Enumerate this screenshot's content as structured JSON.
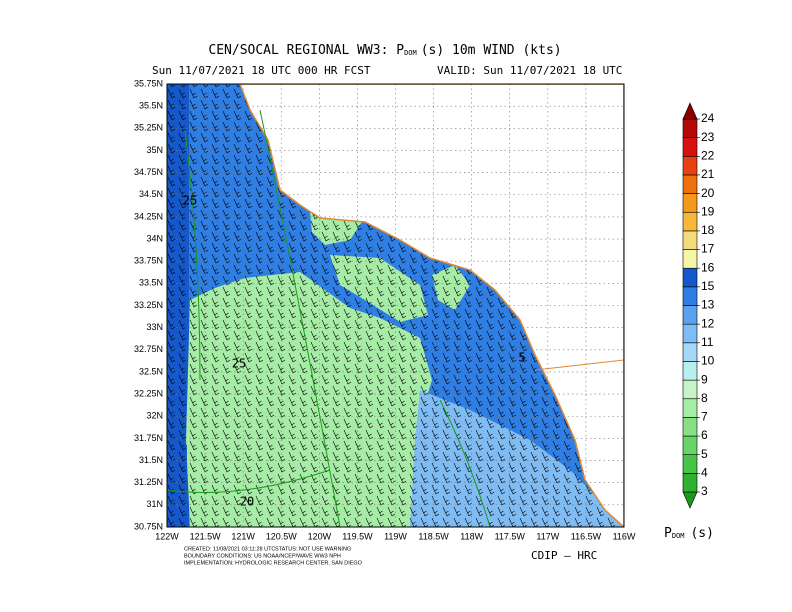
{
  "header": {
    "title_main": "CEN/SOCAL REGIONAL WW3: P",
    "title_sub": "DOM",
    "title_rest": "(s) 10m WIND (kts)",
    "run": "Sun 11/07/2021 18 UTC 000 HR FCST",
    "valid": "VALID: Sun 11/07/2021 18 UTC"
  },
  "map": {
    "xlim": [
      -122,
      -116
    ],
    "ylim": [
      30.75,
      35.75
    ],
    "xticks": [
      {
        "value": -122,
        "label": "122W"
      },
      {
        "value": -121.5,
        "label": "121.5W"
      },
      {
        "value": -121,
        "label": "121W"
      },
      {
        "value": -120.5,
        "label": "120.5W"
      },
      {
        "value": -120,
        "label": "120W"
      },
      {
        "value": -119.5,
        "label": "119.5W"
      },
      {
        "value": -119,
        "label": "119W"
      },
      {
        "value": -118.5,
        "label": "118.5W"
      },
      {
        "value": -118,
        "label": "118W"
      },
      {
        "value": -117.5,
        "label": "117.5W"
      },
      {
        "value": -117,
        "label": "117W"
      },
      {
        "value": -116.5,
        "label": "116.5W"
      },
      {
        "value": -116,
        "label": "116W"
      }
    ],
    "yticks": [
      {
        "value": 30.75,
        "label": "30.75N"
      },
      {
        "value": 31,
        "label": "31N"
      },
      {
        "value": 31.25,
        "label": "31.25N"
      },
      {
        "value": 31.5,
        "label": "31.5N"
      },
      {
        "value": 31.75,
        "label": "31.75N"
      },
      {
        "value": 32,
        "label": "32N"
      },
      {
        "value": 32.25,
        "label": "32.25N"
      },
      {
        "value": 32.5,
        "label": "32.5N"
      },
      {
        "value": 32.75,
        "label": "32.75N"
      },
      {
        "value": 33,
        "label": "33N"
      },
      {
        "value": 33.25,
        "label": "33.25N"
      },
      {
        "value": 33.5,
        "label": "33.5N"
      },
      {
        "value": 33.75,
        "label": "33.75N"
      },
      {
        "value": 34,
        "label": "34N"
      },
      {
        "value": 34.25,
        "label": "34.25N"
      },
      {
        "value": 34.5,
        "label": "34.5N"
      },
      {
        "value": 34.75,
        "label": "34.75N"
      },
      {
        "value": 35,
        "label": "35N"
      },
      {
        "value": 35.25,
        "label": "35.25N"
      },
      {
        "value": 35.5,
        "label": "35.5N"
      },
      {
        "value": 35.75,
        "label": "35.75N"
      }
    ],
    "contour_labels": [
      "25",
      "25",
      "5",
      "20"
    ]
  },
  "colorbar": {
    "levels": [
      3,
      4,
      5,
      6,
      7,
      8,
      9,
      10,
      11,
      12,
      13,
      15,
      16,
      17,
      18,
      19,
      20,
      21,
      22,
      23,
      24
    ],
    "colors": [
      "#1a9a1a",
      "#2fb12f",
      "#48c448",
      "#66d466",
      "#86e086",
      "#a6eca6",
      "#c6f4c6",
      "#b8f0f0",
      "#a8d8f8",
      "#80bcf4",
      "#5aa2ee",
      "#2e7ee4",
      "#1458cc",
      "#f6f6a4",
      "#f4dc7a",
      "#f6b83a",
      "#f4981a",
      "#f07010",
      "#e84010",
      "#d81010",
      "#b40808",
      "#8c0000"
    ],
    "label_main": "P",
    "label_sub": "DOM",
    "label_rest": "(s)"
  },
  "footer": {
    "created": "CREATED: 11/08/2021 03:11:28 UTC",
    "status": "STATUS: NOT USE WARNING",
    "boundary": "BOUNDARY CONDITIONS: US NOAA/NCEP/WAVE WW3 NPH",
    "impl": "IMPLEMENTATION: HYDROLOGIC RESEARCH CENTER, SAN DIEGO",
    "credit": "CDIP — HRC"
  }
}
